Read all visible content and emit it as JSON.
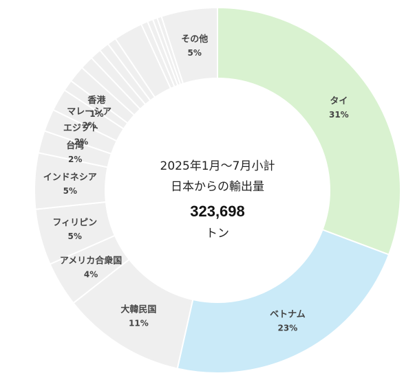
{
  "chart_data": {
    "type": "pie",
    "style": "donut",
    "center": {
      "line1": "2025年1月～7月小計",
      "line2": "日本からの輸出量",
      "value": "323,698",
      "unit": "トン"
    },
    "slices": [
      {
        "name": "タイ",
        "pct_label": "31%",
        "value": 31,
        "color": "#d9f2d0",
        "show_label": true
      },
      {
        "name": "ベトナム",
        "pct_label": "23%",
        "value": 23,
        "color": "#caeaf8",
        "show_label": true
      },
      {
        "name": "大韓民国",
        "pct_label": "11%",
        "value": 11,
        "color": "#efefef",
        "show_label": true
      },
      {
        "name": "アメリカ合衆国",
        "pct_label": "4%",
        "value": 4,
        "color": "#efefef",
        "show_label": true
      },
      {
        "name": "フィリピン",
        "pct_label": "5%",
        "value": 5,
        "color": "#efefef",
        "show_label": true
      },
      {
        "name": "インドネシア",
        "pct_label": "5%",
        "value": 5,
        "color": "#efefef",
        "show_label": true
      },
      {
        "name": "台湾",
        "pct_label": "2%",
        "value": 2,
        "color": "#efefef",
        "show_label": true
      },
      {
        "name": "エジプト",
        "pct_label": "2%",
        "value": 2,
        "color": "#efefef",
        "show_label": true
      },
      {
        "name": "マレーシア",
        "pct_label": "2%",
        "value": 2,
        "color": "#efefef",
        "show_label": true
      },
      {
        "name": "香港",
        "pct_label": "1%",
        "value": 1,
        "color": "#efefef",
        "show_label": true
      },
      {
        "name": "",
        "pct_label": "",
        "value": 1.5,
        "color": "#efefef",
        "show_label": false
      },
      {
        "name": "",
        "pct_label": "",
        "value": 1.2,
        "color": "#efefef",
        "show_label": false
      },
      {
        "name": "",
        "pct_label": "",
        "value": 1.0,
        "color": "#efefef",
        "show_label": false
      },
      {
        "name": "",
        "pct_label": "",
        "value": 0.9,
        "color": "#efefef",
        "show_label": false
      },
      {
        "name": "",
        "pct_label": "",
        "value": 0.8,
        "color": "#efefef",
        "show_label": false
      },
      {
        "name": "",
        "pct_label": "",
        "value": 2.6,
        "color": "#efefef",
        "show_label": false
      },
      {
        "name": "",
        "pct_label": "",
        "value": 0.6,
        "color": "#efefef",
        "show_label": false
      },
      {
        "name": "",
        "pct_label": "",
        "value": 0.5,
        "color": "#efefef",
        "show_label": false
      },
      {
        "name": "",
        "pct_label": "",
        "value": 0.4,
        "color": "#efefef",
        "show_label": false
      },
      {
        "name": "",
        "pct_label": "",
        "value": 0.4,
        "color": "#efefef",
        "show_label": false
      },
      {
        "name": "その他",
        "pct_label": "5%",
        "value": 5,
        "color": "#efefef",
        "show_label": true
      }
    ]
  }
}
